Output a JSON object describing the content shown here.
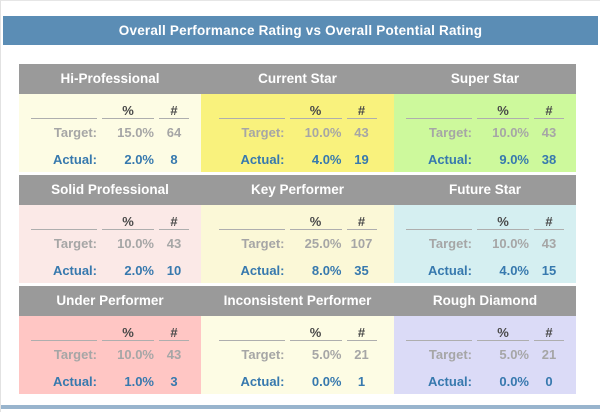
{
  "title": "Overall Performance Rating vs Overall Potential Rating",
  "legend": {
    "percent_symbol": "%",
    "count_symbol": "#",
    "target_label": "Target:",
    "actual_label": "Actual:"
  },
  "colors": {
    "title_bar_bg": "#5b8db5",
    "cell_header_bg": "#9a9a9a",
    "target_text": "#a6a6a6",
    "actual_text": "#3779ae",
    "footer_bar": "#98b4cd"
  },
  "cells": [
    {
      "name": "Hi-Professional",
      "bg": "#fdfce4",
      "target_pct": "15.0%",
      "target_num": "64",
      "actual_pct": "2.0%",
      "actual_num": "8"
    },
    {
      "name": "Current Star",
      "bg": "#f9f27d",
      "target_pct": "10.0%",
      "target_num": "43",
      "actual_pct": "4.0%",
      "actual_num": "19"
    },
    {
      "name": "Super Star",
      "bg": "#cdf99c",
      "target_pct": "10.0%",
      "target_num": "43",
      "actual_pct": "9.0%",
      "actual_num": "38"
    },
    {
      "name": "Solid Professional",
      "bg": "#fbe9e7",
      "target_pct": "10.0%",
      "target_num": "43",
      "actual_pct": "2.0%",
      "actual_num": "10"
    },
    {
      "name": "Key Performer",
      "bg": "#fbf8d7",
      "target_pct": "25.0%",
      "target_num": "107",
      "actual_pct": "8.0%",
      "actual_num": "35"
    },
    {
      "name": "Future Star",
      "bg": "#d5eff1",
      "target_pct": "10.0%",
      "target_num": "43",
      "actual_pct": "4.0%",
      "actual_num": "15"
    },
    {
      "name": "Under Performer",
      "bg": "#ffc6c4",
      "target_pct": "10.0%",
      "target_num": "43",
      "actual_pct": "1.0%",
      "actual_num": "3"
    },
    {
      "name": "Inconsistent Performer",
      "bg": "#fdfce4",
      "target_pct": "5.0%",
      "target_num": "21",
      "actual_pct": "0.0%",
      "actual_num": "1"
    },
    {
      "name": "Rough Diamond",
      "bg": "#dbdbf7",
      "target_pct": "5.0%",
      "target_num": "21",
      "actual_pct": "0.0%",
      "actual_num": "0"
    }
  ],
  "chart_data": {
    "type": "table",
    "title": "Overall Performance Rating vs Overall Potential Rating",
    "layout": "3x3 nine-box grid",
    "columns": [
      "%",
      "#"
    ],
    "measures": [
      "Target",
      "Actual"
    ],
    "rows": [
      {
        "category": "Hi-Professional",
        "target_pct": 15.0,
        "target_count": 64,
        "actual_pct": 2.0,
        "actual_count": 8
      },
      {
        "category": "Current Star",
        "target_pct": 10.0,
        "target_count": 43,
        "actual_pct": 4.0,
        "actual_count": 19
      },
      {
        "category": "Super Star",
        "target_pct": 10.0,
        "target_count": 43,
        "actual_pct": 9.0,
        "actual_count": 38
      },
      {
        "category": "Solid Professional",
        "target_pct": 10.0,
        "target_count": 43,
        "actual_pct": 2.0,
        "actual_count": 10
      },
      {
        "category": "Key Performer",
        "target_pct": 25.0,
        "target_count": 107,
        "actual_pct": 8.0,
        "actual_count": 35
      },
      {
        "category": "Future Star",
        "target_pct": 10.0,
        "target_count": 43,
        "actual_pct": 4.0,
        "actual_count": 15
      },
      {
        "category": "Under Performer",
        "target_pct": 10.0,
        "target_count": 43,
        "actual_pct": 1.0,
        "actual_count": 3
      },
      {
        "category": "Inconsistent Performer",
        "target_pct": 5.0,
        "target_count": 21,
        "actual_pct": 0.0,
        "actual_count": 1
      },
      {
        "category": "Rough Diamond",
        "target_pct": 5.0,
        "target_count": 21,
        "actual_pct": 0.0,
        "actual_count": 0
      }
    ]
  }
}
